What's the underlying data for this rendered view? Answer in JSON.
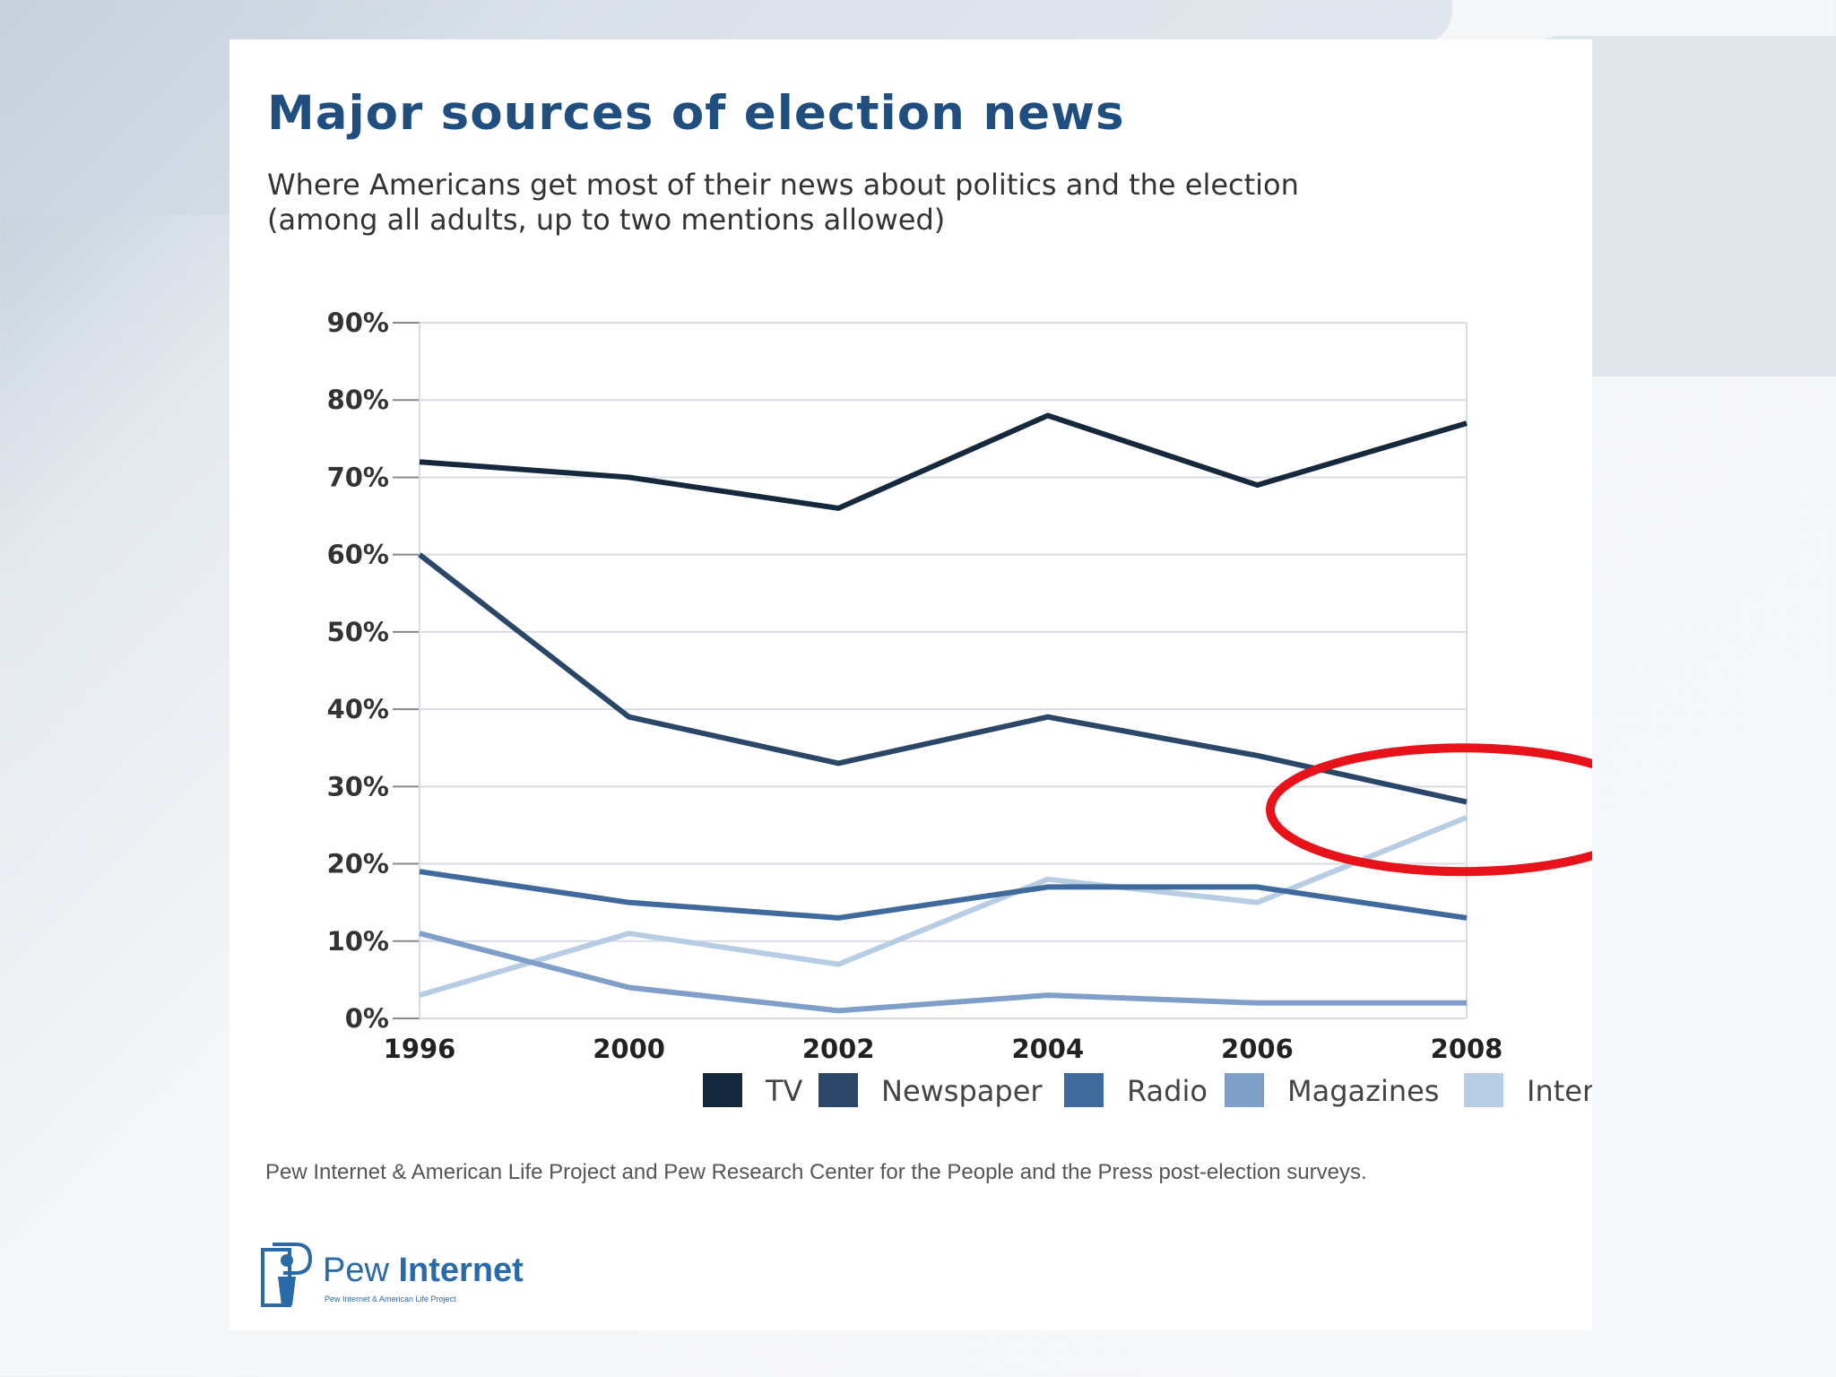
{
  "chart_data": {
    "type": "line",
    "title": "Major sources of election news",
    "subtitle": [
      "Where Americans get most of their news about politics and the election",
      "(among all adults, up to two mentions allowed)"
    ],
    "xlabel": "",
    "ylabel": "",
    "categories": [
      "1996",
      "2000",
      "2002",
      "2004",
      "2006",
      "2008"
    ],
    "ylim": [
      0,
      90
    ],
    "yticks": [
      "0%",
      "10%",
      "20%",
      "30%",
      "40%",
      "50%",
      "60%",
      "70%",
      "80%",
      "90%"
    ],
    "series": [
      {
        "name": "TV",
        "color": "#16283c",
        "values": [
          72,
          70,
          66,
          78,
          69,
          77
        ]
      },
      {
        "name": "Newspaper",
        "color": "#2a4768",
        "values": [
          60,
          39,
          33,
          39,
          34,
          28
        ]
      },
      {
        "name": "Radio",
        "color": "#3f6a9b",
        "values": [
          19,
          15,
          13,
          17,
          17,
          13
        ]
      },
      {
        "name": "Magazines",
        "color": "#7f9fc8",
        "values": [
          11,
          4,
          1,
          3,
          2,
          2
        ]
      },
      {
        "name": "Internet",
        "color": "#b7cde4",
        "values": [
          3,
          11,
          7,
          18,
          15,
          26
        ]
      }
    ],
    "grid": true,
    "legend": "bottom",
    "annotation": {
      "type": "ellipse",
      "color": "#e8121b",
      "x": 2008,
      "y": 27
    }
  },
  "source": "Pew Internet & American Life Project and Pew Research Center for the People and the Press post-election surveys.",
  "logo": {
    "name_light": "Pew",
    "name_bold": "Internet",
    "tagline": "Pew Internet & American Life Project"
  }
}
